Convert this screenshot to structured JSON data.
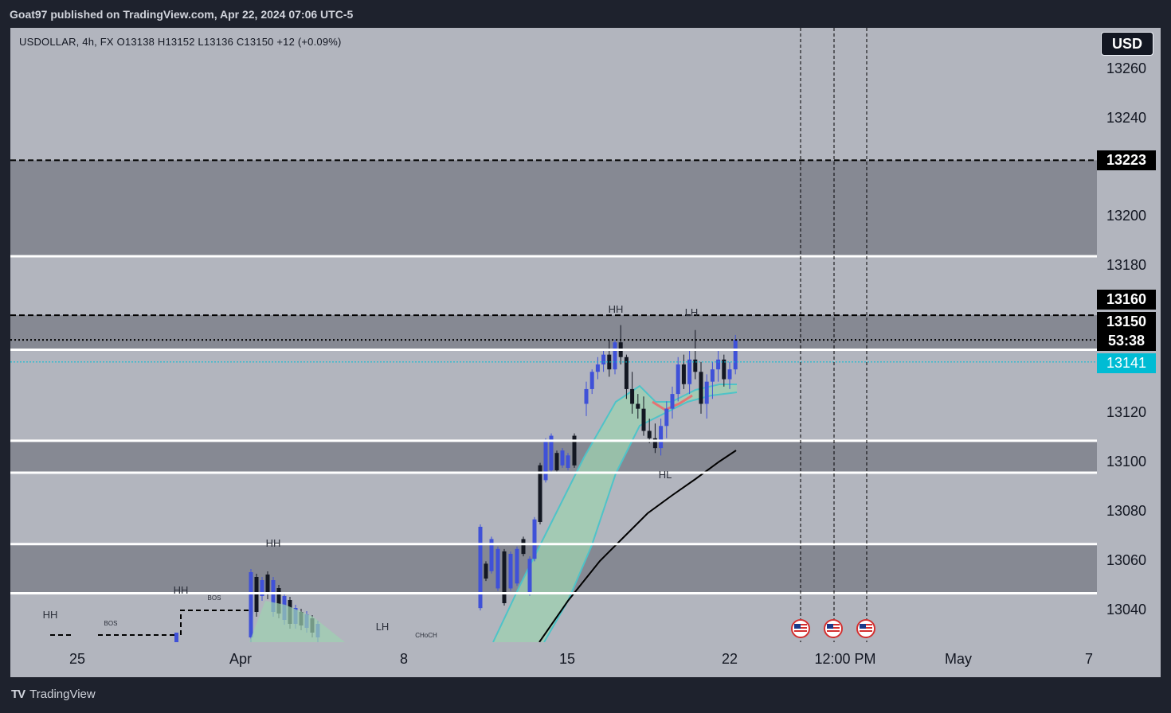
{
  "header": {
    "published_text": "Goat97 published on TradingView.com, Apr 22, 2024 07:06 UTC-5"
  },
  "symbol_info": "USDOLLAR, 4h, FX  O13138  H13152  L13136  C13150  +12 (+0.09%)",
  "currency_button": "USD",
  "footer": {
    "brand": "TradingView",
    "logo": "TV"
  },
  "price_badges": {
    "level_top": "13223",
    "level_mid": "13160",
    "last_price": "13150",
    "countdown": "53:38",
    "bid_price": "13141"
  },
  "icons": {
    "flag": "us-flag-icon",
    "logo": "tradingview-logo-icon"
  },
  "colors": {
    "background": "#b2b5be",
    "zone": "#868993",
    "bull_candle": "#3f51d8",
    "bear_candle": "#131722",
    "ribbon_fill": "#9ed2b0",
    "ribbon_line": "#4fc3c8",
    "ma_line": "#000000",
    "bid_line": "#00bcd4"
  },
  "chart_data": {
    "type": "line",
    "title": "",
    "xlabel": "",
    "ylabel": "",
    "y_axis_ticks": [
      "13260",
      "13240",
      "13200",
      "13180",
      "13120",
      "13100",
      "13080",
      "13060",
      "13040"
    ],
    "x_axis_ticks": [
      "25",
      "Apr",
      "8",
      "15",
      "22",
      "12:00 PM",
      "May",
      "7"
    ],
    "ylim": [
      13025,
      13277
    ],
    "grid": false,
    "zones": [
      {
        "top": 13223,
        "bottom": 13184,
        "top_style": "dashed",
        "bottom_style": "solid"
      },
      {
        "top": 13160,
        "bottom": 13146,
        "top_style": "dashed",
        "bottom_style": "solid"
      },
      {
        "top": 13109,
        "bottom": 13096,
        "top_style": "solid",
        "bottom_style": "solid"
      },
      {
        "top": 13067,
        "bottom": 13047,
        "top_style": "solid",
        "bottom_style": "solid"
      }
    ],
    "annotations": [
      {
        "text": "HH",
        "x": "Apr 17",
        "y": 13167
      },
      {
        "text": "LH",
        "x": "Apr 20",
        "y": 13166
      },
      {
        "text": "HL",
        "x": "Apr 18",
        "y": 13091
      },
      {
        "text": "HH",
        "x": "Apr 2",
        "y": 13056
      },
      {
        "text": "HH",
        "x": "Mar 30",
        "y": 13046
      },
      {
        "text": "BOS",
        "x": "Mar 31",
        "y": 13038
      },
      {
        "text": "HH",
        "x": "Mar 24",
        "y": 13036
      },
      {
        "text": "BOS",
        "x": "Mar 26",
        "y": 13034
      },
      {
        "text": "LH",
        "x": "Apr 6",
        "y": 13031
      },
      {
        "text": "CHoCH",
        "x": "Apr 9",
        "y": 13029
      }
    ],
    "events": [
      "us-flag-icon",
      "us-flag-icon",
      "us-flag-icon"
    ],
    "series": [
      {
        "name": "USDOLLAR",
        "type": "candlestick",
        "candles": [
          [
            13124,
            13133,
            13119,
            13130
          ],
          [
            13130,
            13138,
            13128,
            13137
          ],
          [
            13137,
            13143,
            13134,
            13140
          ],
          [
            13140,
            13146,
            13137,
            13144
          ],
          [
            13144,
            13150,
            13135,
            13138
          ],
          [
            13138,
            13150,
            13136,
            13149
          ],
          [
            13149,
            13156,
            13140,
            13143
          ],
          [
            13143,
            13144,
            13126,
            13130
          ],
          [
            13130,
            13137,
            13120,
            13124
          ],
          [
            13124,
            13128,
            13118,
            13122
          ],
          [
            13122,
            13127,
            13111,
            13113
          ],
          [
            13113,
            13118,
            13108,
            13110
          ],
          [
            13110,
            13116,
            13104,
            13106
          ],
          [
            13106,
            13118,
            13103,
            13115
          ],
          [
            13115,
            13125,
            13110,
            13122
          ],
          [
            13122,
            13131,
            13118,
            13128
          ],
          [
            13128,
            13143,
            13125,
            13140
          ],
          [
            13140,
            13144,
            13130,
            13132
          ],
          [
            13132,
            13146,
            13128,
            13142
          ],
          [
            13142,
            13154,
            13134,
            13137
          ],
          [
            13137,
            13141,
            13120,
            13124
          ],
          [
            13124,
            13136,
            13118,
            13133
          ],
          [
            13133,
            13141,
            13126,
            13138
          ],
          [
            13138,
            13146,
            13133,
            13142
          ],
          [
            13142,
            13144,
            13131,
            13134
          ],
          [
            13134,
            13141,
            13130,
            13138
          ],
          [
            13138,
            13152,
            13136,
            13150
          ]
        ]
      },
      {
        "name": "MA",
        "type": "line",
        "values": [
          13050,
          13058,
          13066,
          13074,
          13082,
          13086,
          13090,
          13093,
          13096,
          13099,
          13101,
          13104
        ]
      }
    ]
  }
}
